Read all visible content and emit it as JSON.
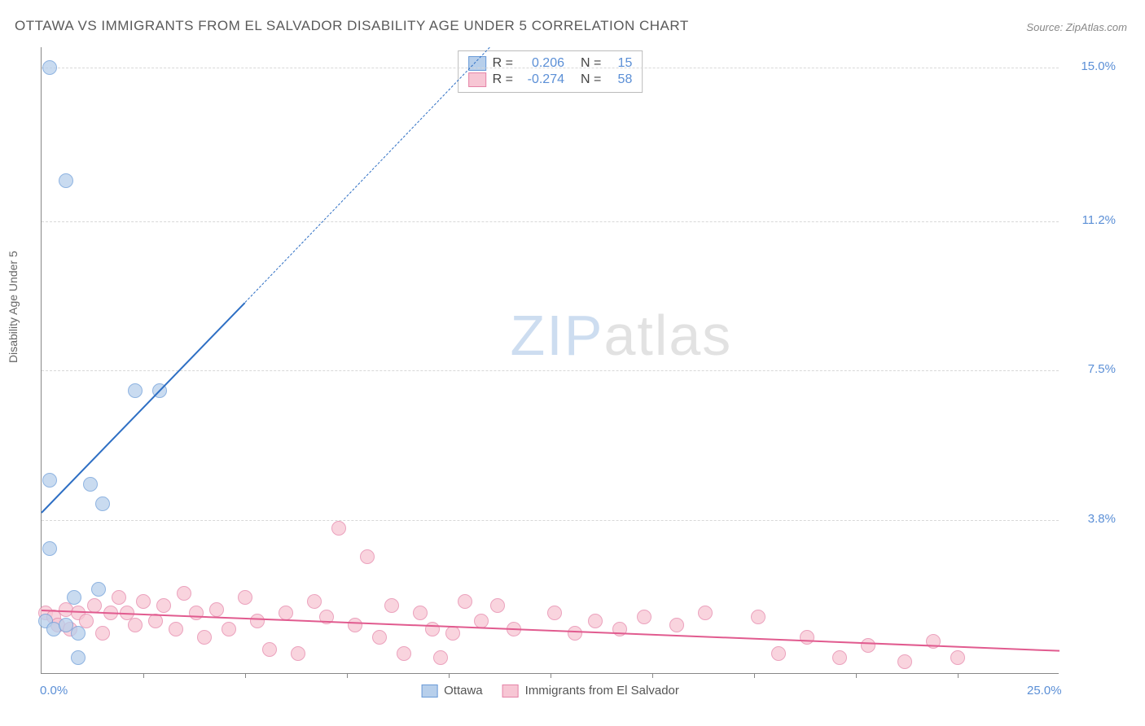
{
  "title": "OTTAWA VS IMMIGRANTS FROM EL SALVADOR DISABILITY AGE UNDER 5 CORRELATION CHART",
  "source_label": "Source:",
  "source_value": "ZipAtlas.com",
  "ylabel": "Disability Age Under 5",
  "watermark": {
    "part1": "ZIP",
    "part2": "atlas"
  },
  "chart": {
    "type": "scatter",
    "background_color": "#ffffff",
    "grid_color": "#d8d8d8",
    "axis_color": "#888888",
    "xlim": [
      0,
      25
    ],
    "ylim": [
      0,
      15.5
    ],
    "ytick_labels": [
      {
        "value": 3.8,
        "label": "3.8%"
      },
      {
        "value": 7.5,
        "label": "7.5%"
      },
      {
        "value": 11.2,
        "label": "11.2%"
      },
      {
        "value": 15.0,
        "label": "15.0%"
      }
    ],
    "xtick_positions": [
      2.5,
      5,
      7.5,
      10,
      12.5,
      15,
      17.5,
      20,
      22.5
    ],
    "xtick_labels": [
      {
        "value": 0,
        "label": "0.0%"
      },
      {
        "value": 25,
        "label": "25.0%"
      }
    ],
    "series": [
      {
        "name": "Ottawa",
        "color_fill": "#b7cfeb",
        "color_stroke": "#6a9bd8",
        "marker_radius": 9,
        "trend_color": "#2e6fc4",
        "trend_solid": {
          "x1": 0,
          "y1": 4.0,
          "x2": 5.0,
          "y2": 9.2
        },
        "trend_dash": {
          "x1": 5.0,
          "y1": 9.2,
          "x2": 11.0,
          "y2": 15.5
        },
        "R": "0.206",
        "N": "15",
        "points": [
          {
            "x": 0.2,
            "y": 15.0
          },
          {
            "x": 0.6,
            "y": 12.2
          },
          {
            "x": 2.3,
            "y": 7.0
          },
          {
            "x": 2.9,
            "y": 7.0
          },
          {
            "x": 0.2,
            "y": 4.8
          },
          {
            "x": 1.2,
            "y": 4.7
          },
          {
            "x": 1.5,
            "y": 4.2
          },
          {
            "x": 0.2,
            "y": 3.1
          },
          {
            "x": 0.8,
            "y": 1.9
          },
          {
            "x": 1.4,
            "y": 2.1
          },
          {
            "x": 0.1,
            "y": 1.3
          },
          {
            "x": 0.3,
            "y": 1.1
          },
          {
            "x": 0.6,
            "y": 1.2
          },
          {
            "x": 0.9,
            "y": 1.0
          },
          {
            "x": 0.9,
            "y": 0.4
          }
        ]
      },
      {
        "name": "Immigrants from El Salvador",
        "color_fill": "#f7c6d4",
        "color_stroke": "#e584a8",
        "marker_radius": 9,
        "trend_color": "#e15b8f",
        "trend_solid": {
          "x1": 0,
          "y1": 1.6,
          "x2": 25.0,
          "y2": 0.6
        },
        "R": "-0.274",
        "N": "58",
        "points": [
          {
            "x": 0.1,
            "y": 1.5
          },
          {
            "x": 0.3,
            "y": 1.4
          },
          {
            "x": 0.4,
            "y": 1.2
          },
          {
            "x": 0.6,
            "y": 1.6
          },
          {
            "x": 0.7,
            "y": 1.1
          },
          {
            "x": 0.9,
            "y": 1.5
          },
          {
            "x": 1.1,
            "y": 1.3
          },
          {
            "x": 1.3,
            "y": 1.7
          },
          {
            "x": 1.5,
            "y": 1.0
          },
          {
            "x": 1.7,
            "y": 1.5
          },
          {
            "x": 1.9,
            "y": 1.9
          },
          {
            "x": 2.1,
            "y": 1.5
          },
          {
            "x": 2.3,
            "y": 1.2
          },
          {
            "x": 2.5,
            "y": 1.8
          },
          {
            "x": 2.8,
            "y": 1.3
          },
          {
            "x": 3.0,
            "y": 1.7
          },
          {
            "x": 3.3,
            "y": 1.1
          },
          {
            "x": 3.5,
            "y": 2.0
          },
          {
            "x": 3.8,
            "y": 1.5
          },
          {
            "x": 4.0,
            "y": 0.9
          },
          {
            "x": 4.3,
            "y": 1.6
          },
          {
            "x": 4.6,
            "y": 1.1
          },
          {
            "x": 5.0,
            "y": 1.9
          },
          {
            "x": 5.3,
            "y": 1.3
          },
          {
            "x": 5.6,
            "y": 0.6
          },
          {
            "x": 6.0,
            "y": 1.5
          },
          {
            "x": 6.3,
            "y": 0.5
          },
          {
            "x": 6.7,
            "y": 1.8
          },
          {
            "x": 7.0,
            "y": 1.4
          },
          {
            "x": 7.3,
            "y": 3.6
          },
          {
            "x": 7.7,
            "y": 1.2
          },
          {
            "x": 8.0,
            "y": 2.9
          },
          {
            "x": 8.3,
            "y": 0.9
          },
          {
            "x": 8.6,
            "y": 1.7
          },
          {
            "x": 8.9,
            "y": 0.5
          },
          {
            "x": 9.3,
            "y": 1.5
          },
          {
            "x": 9.6,
            "y": 1.1
          },
          {
            "x": 9.8,
            "y": 0.4
          },
          {
            "x": 10.1,
            "y": 1.0
          },
          {
            "x": 10.4,
            "y": 1.8
          },
          {
            "x": 10.8,
            "y": 1.3
          },
          {
            "x": 11.2,
            "y": 1.7
          },
          {
            "x": 11.6,
            "y": 1.1
          },
          {
            "x": 12.6,
            "y": 1.5
          },
          {
            "x": 13.1,
            "y": 1.0
          },
          {
            "x": 13.6,
            "y": 1.3
          },
          {
            "x": 14.2,
            "y": 1.1
          },
          {
            "x": 14.8,
            "y": 1.4
          },
          {
            "x": 15.6,
            "y": 1.2
          },
          {
            "x": 16.3,
            "y": 1.5
          },
          {
            "x": 17.6,
            "y": 1.4
          },
          {
            "x": 18.1,
            "y": 0.5
          },
          {
            "x": 18.8,
            "y": 0.9
          },
          {
            "x": 19.6,
            "y": 0.4
          },
          {
            "x": 20.3,
            "y": 0.7
          },
          {
            "x": 21.2,
            "y": 0.3
          },
          {
            "x": 21.9,
            "y": 0.8
          },
          {
            "x": 22.5,
            "y": 0.4
          }
        ]
      }
    ]
  },
  "legend_bottom": [
    {
      "swatch_fill": "#b7cfeb",
      "swatch_stroke": "#6a9bd8",
      "label": "Ottawa"
    },
    {
      "swatch_fill": "#f7c6d4",
      "swatch_stroke": "#e584a8",
      "label": "Immigrants from El Salvador"
    }
  ]
}
